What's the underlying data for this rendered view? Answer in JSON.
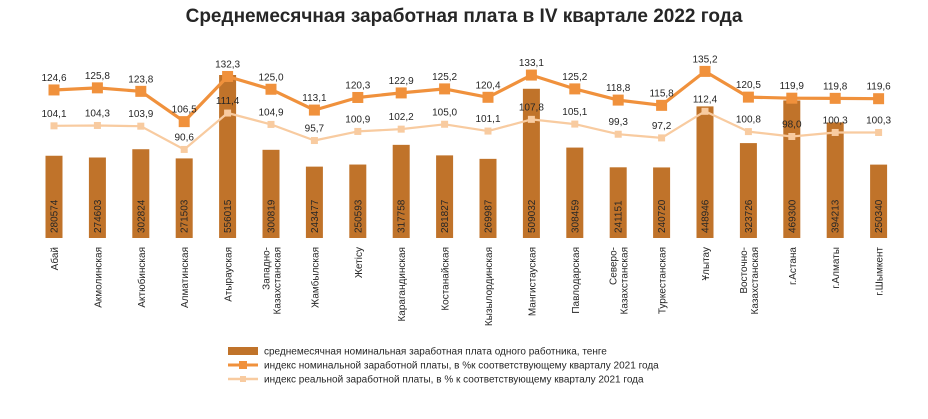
{
  "chart_data": {
    "type": "bar",
    "title": "Среднемесячная заработная плата в IV квартале 2022 года",
    "categories": [
      [
        "Абай"
      ],
      [
        "Акмолинская"
      ],
      [
        "Актюбинская"
      ],
      [
        "Алматинская"
      ],
      [
        "Атырауская"
      ],
      [
        "Западно-",
        "Казахстанская"
      ],
      [
        "Жамбылская"
      ],
      [
        "Жетісу"
      ],
      [
        "Карагандинская"
      ],
      [
        "Костанайская"
      ],
      [
        "Кызылординская"
      ],
      [
        "Мангистауская"
      ],
      [
        "Павлодарская"
      ],
      [
        "Северо-",
        "Казахстанская"
      ],
      [
        "Туркестанская"
      ],
      [
        "Ұлытау"
      ],
      [
        "Восточно-",
        "Казахстанская"
      ],
      [
        "г.Астана"
      ],
      [
        "г.Алматы"
      ],
      [
        "г.Шымкент"
      ]
    ],
    "series": [
      {
        "name": "среднемесячная номинальная заработная плата одного работника, тенге",
        "type": "bar",
        "axis": "left",
        "color": "#C0732A",
        "values": [
          280574,
          274603,
          302824,
          271503,
          556015,
          300819,
          243477,
          250593,
          317758,
          281827,
          269987,
          509032,
          308459,
          241151,
          240720,
          448946,
          323726,
          469300,
          394213,
          250340
        ],
        "labels": [
          "280574",
          "274603",
          "302824",
          "271503",
          "556015",
          "300819",
          "243477",
          "250593",
          "317758",
          "281827",
          "269987",
          "509032",
          "308459",
          "241151",
          "240720",
          "448946",
          "323726",
          "469300",
          "394213",
          "250340"
        ]
      },
      {
        "name": "индекс номинальной заработной платы, в %к соответствующему кварталу 2021 года",
        "type": "line",
        "axis": "right",
        "color": "#F0913C",
        "values": [
          124.6,
          125.8,
          123.8,
          106.5,
          132.3,
          125.0,
          113.1,
          120.3,
          122.9,
          125.2,
          120.4,
          133.1,
          125.2,
          118.8,
          115.8,
          135.2,
          120.5,
          119.9,
          119.8,
          119.6
        ],
        "labels": [
          "124,6",
          "125,8",
          "123,8",
          "106,5",
          "132,3",
          "125,0",
          "113,1",
          "120,3",
          "122,9",
          "125,2",
          "120,4",
          "133,1",
          "125,2",
          "118,8",
          "115,8",
          "135,2",
          "120,5",
          "119,9",
          "119,8",
          "119,6"
        ]
      },
      {
        "name": "индекс реальной заработной платы, в % к соответствующему кварталу 2021 года",
        "type": "line",
        "axis": "right",
        "color": "#F8CBA0",
        "values": [
          104.1,
          104.3,
          103.9,
          90.6,
          111.4,
          104.9,
          95.7,
          100.9,
          102.2,
          105.0,
          101.1,
          107.8,
          105.1,
          99.3,
          97.2,
          112.4,
          100.8,
          98.0,
          100.3,
          100.3
        ],
        "labels": [
          "104,1",
          "104,3",
          "103,9",
          "90,6",
          "111,4",
          "104,9",
          "95,7",
          "100,9",
          "102,2",
          "105,0",
          "101,1",
          "107,8",
          "105,1",
          "99,3",
          "97,2",
          "112,4",
          "100,8",
          "98,0",
          "100,3",
          "100,3"
        ]
      }
    ],
    "grid": false,
    "legend_position": "bottom"
  }
}
